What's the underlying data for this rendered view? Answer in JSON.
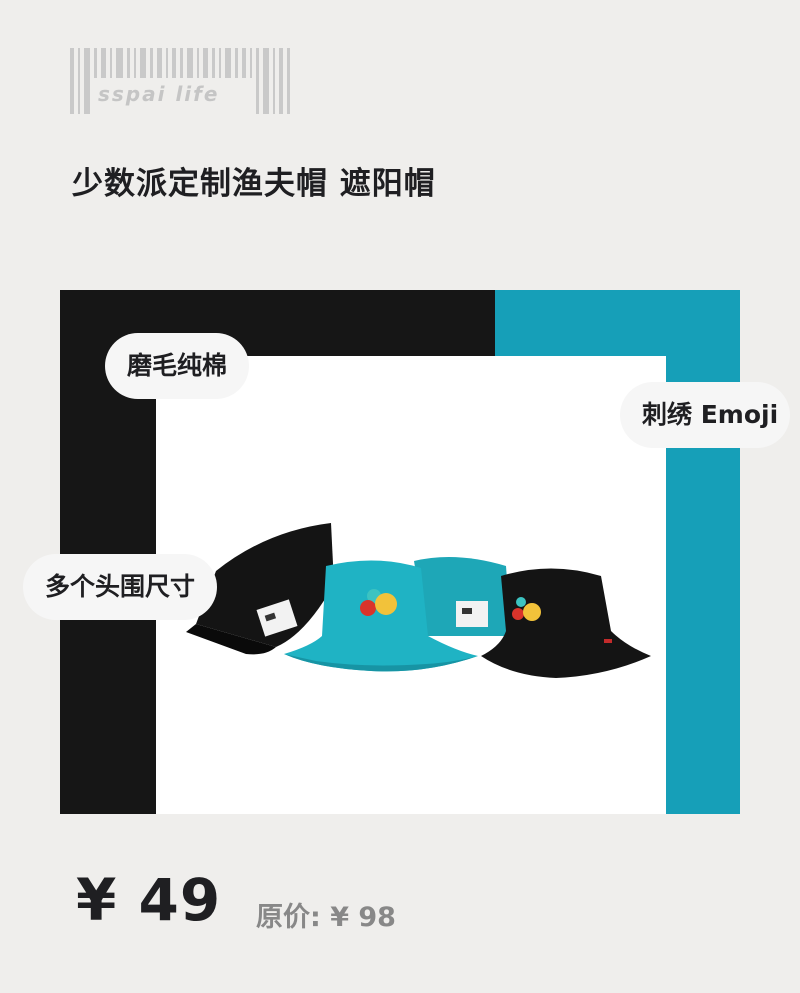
{
  "logo": {
    "text": "sspai life"
  },
  "product": {
    "title": "少数派定制渔夫帽 遮阳帽",
    "image_alt": "Fisherman bucket hats in black and teal with embroidered emoji"
  },
  "tags": {
    "cotton": "磨毛纯棉",
    "emoji": "刺绣 Emoji",
    "sizes": "多个头围尺寸"
  },
  "pricing": {
    "price": "¥ 49",
    "original": "原价: ¥ 98"
  },
  "colors": {
    "background": "#efeeec",
    "black_panel": "#161616",
    "teal_panel": "#169fb8",
    "text": "#1f1f22",
    "muted_text": "#888888"
  }
}
